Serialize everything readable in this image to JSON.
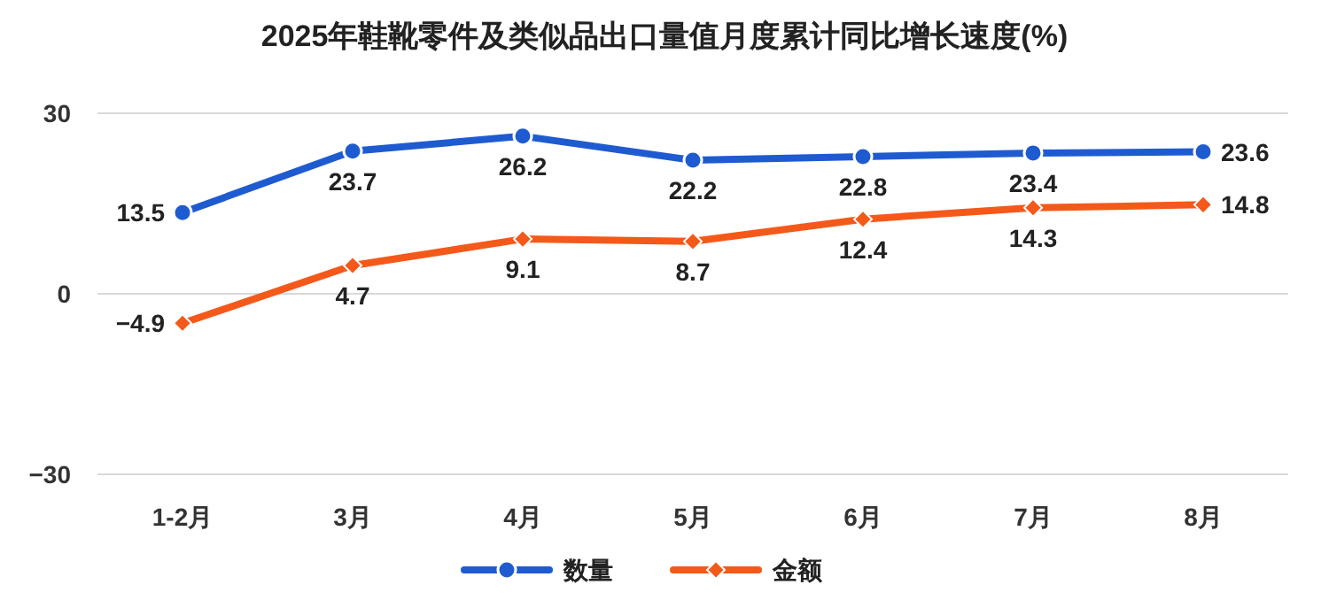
{
  "chart_data": {
    "type": "line",
    "title": "2025年鞋靴零件及类似品出口量值月度累计同比增长速度(%)",
    "categories": [
      "1-2月",
      "3月",
      "4月",
      "5月",
      "6月",
      "7月",
      "8月"
    ],
    "series": [
      {
        "name": "数量",
        "color": "#1f5bd0",
        "marker": "circle",
        "values": [
          13.5,
          23.7,
          26.2,
          22.2,
          22.8,
          23.4,
          23.6
        ]
      },
      {
        "name": "金额",
        "color": "#f4591a",
        "marker": "diamond",
        "values": [
          -4.9,
          4.7,
          9.1,
          8.7,
          12.4,
          14.3,
          14.8
        ]
      }
    ],
    "ylim": [
      -30,
      30
    ],
    "yticks": [
      -30,
      0,
      30
    ],
    "grid": "y",
    "legend": "bottom",
    "data_labels": true,
    "line_style": "solid"
  }
}
